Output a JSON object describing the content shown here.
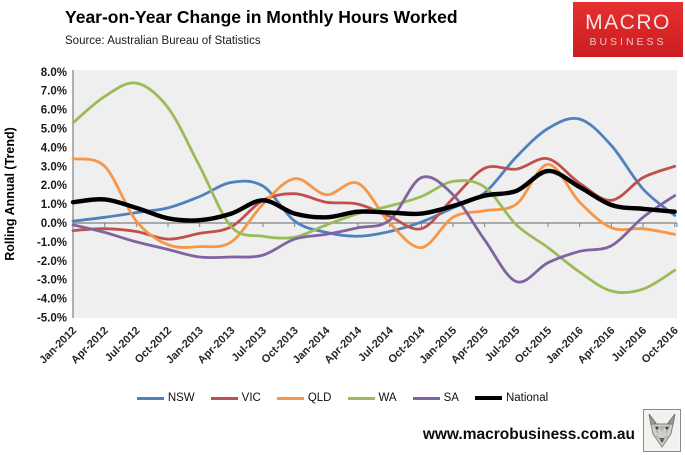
{
  "header": {
    "title": "Year-on-Year Change in Monthly Hours Worked",
    "source": "Source: Australian Bureau of Statistics"
  },
  "logo": {
    "line1": "MACRO",
    "line2": "BUSINESS"
  },
  "footer": {
    "url": "www.macrobusiness.com.au"
  },
  "colors": {
    "nsw": "#4F81BD",
    "vic": "#C0504D",
    "qld": "#F79646",
    "wa": "#9BBB59",
    "sa": "#8064A2",
    "national": "#000000",
    "plot_bg": "#EFEFEF",
    "axis": "#808080",
    "logo_red": "#D92427"
  },
  "chart_data": {
    "type": "line",
    "title": "Year-on-Year Change in Monthly Hours Worked",
    "ylabel": "Rolling Annual (Trend)",
    "xlabel": "",
    "unit": "%",
    "ylim": [
      -5.0,
      8.0
    ],
    "ytick_step": 1.0,
    "ytick_labels": [
      "8.0%",
      "7.0%",
      "6.0%",
      "5.0%",
      "4.0%",
      "3.0%",
      "2.0%",
      "1.0%",
      "0.0%",
      "-1.0%",
      "-2.0%",
      "-3.0%",
      "-4.0%",
      "-5.0%"
    ],
    "grid": false,
    "legend_position": "bottom",
    "categories": [
      "Jan-2012",
      "Apr-2012",
      "Jul-2012",
      "Oct-2012",
      "Jan-2013",
      "Apr-2013",
      "Jul-2013",
      "Oct-2013",
      "Jan-2014",
      "Apr-2014",
      "Jul-2014",
      "Oct-2014",
      "Jan-2015",
      "Apr-2015",
      "Jul-2015",
      "Oct-2015",
      "Jan-2016",
      "Apr-2016",
      "Jul-2016",
      "Oct-2016"
    ],
    "series": [
      {
        "name": "NSW",
        "color": "#4F81BD",
        "width": 2.8,
        "values": [
          0.1,
          0.3,
          0.55,
          0.8,
          1.4,
          2.15,
          1.95,
          0.1,
          -0.5,
          -0.7,
          -0.45,
          0.05,
          0.8,
          1.6,
          3.5,
          5.0,
          5.5,
          4.1,
          1.8,
          0.4
        ]
      },
      {
        "name": "VIC",
        "color": "#C0504D",
        "width": 2.8,
        "values": [
          -0.4,
          -0.3,
          -0.45,
          -0.85,
          -0.55,
          -0.2,
          1.2,
          1.55,
          1.1,
          1.0,
          0.35,
          -0.3,
          1.3,
          2.9,
          2.85,
          3.4,
          2.1,
          1.2,
          2.4,
          3.0
        ]
      },
      {
        "name": "QLD",
        "color": "#F79646",
        "width": 2.8,
        "values": [
          3.4,
          3.0,
          0.1,
          -1.15,
          -1.25,
          -1.0,
          1.0,
          2.35,
          1.5,
          2.1,
          0.0,
          -1.3,
          0.3,
          0.65,
          1.0,
          3.1,
          1.1,
          -0.25,
          -0.3,
          -0.6
        ]
      },
      {
        "name": "WA",
        "color": "#9BBB59",
        "width": 2.8,
        "values": [
          5.3,
          6.7,
          7.4,
          6.1,
          3.0,
          -0.2,
          -0.7,
          -0.75,
          -0.1,
          0.5,
          0.9,
          1.4,
          2.2,
          1.9,
          -0.1,
          -1.3,
          -2.6,
          -3.6,
          -3.5,
          -2.5
        ]
      },
      {
        "name": "SA",
        "color": "#8064A2",
        "width": 2.8,
        "values": [
          -0.1,
          -0.5,
          -1.0,
          -1.4,
          -1.8,
          -1.8,
          -1.7,
          -0.85,
          -0.6,
          -0.25,
          0.15,
          2.4,
          1.5,
          -0.9,
          -3.1,
          -2.1,
          -1.5,
          -1.2,
          0.3,
          1.45
        ]
      },
      {
        "name": "National",
        "color": "#000000",
        "width": 4.4,
        "values": [
          1.1,
          1.25,
          0.8,
          0.25,
          0.15,
          0.5,
          1.2,
          0.5,
          0.3,
          0.6,
          0.55,
          0.5,
          0.9,
          1.45,
          1.7,
          2.75,
          1.9,
          0.95,
          0.75,
          0.6
        ]
      }
    ]
  }
}
